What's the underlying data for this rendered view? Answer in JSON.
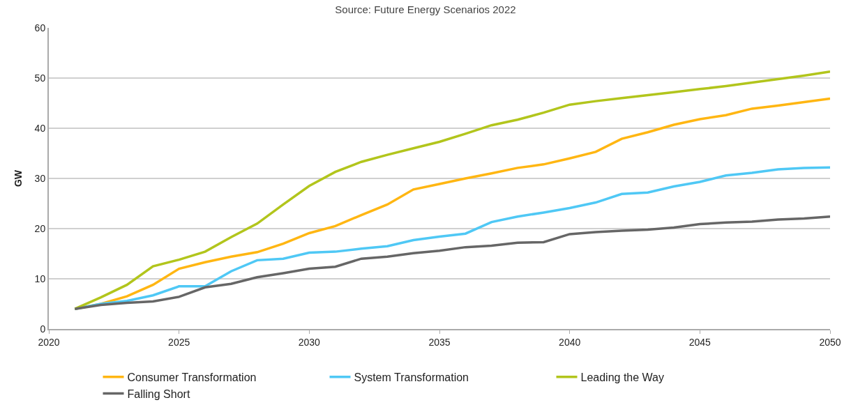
{
  "chart_data": {
    "type": "line",
    "title": "Source: Future Energy Scenarios 2022",
    "ylabel": "GW",
    "x": [
      2021,
      2022,
      2023,
      2024,
      2025,
      2026,
      2027,
      2028,
      2029,
      2030,
      2031,
      2032,
      2033,
      2034,
      2035,
      2036,
      2037,
      2038,
      2039,
      2040,
      2041,
      2042,
      2043,
      2044,
      2045,
      2046,
      2047,
      2048,
      2049,
      2050
    ],
    "series": [
      {
        "name": "Consumer Transformation",
        "color": "#ffb612",
        "values": [
          4,
          5,
          6.5,
          8.8,
          12,
          13.3,
          14.4,
          15.3,
          17,
          19.1,
          20.5,
          22.7,
          24.8,
          27.8,
          28.9,
          30,
          31,
          32.1,
          32.8,
          34,
          35.3,
          37.9,
          39.2,
          40.7,
          41.8,
          42.6,
          43.9,
          44.5,
          45.2,
          45.9
        ]
      },
      {
        "name": "System Transformation",
        "color": "#4fc8f5",
        "values": [
          4,
          5,
          5.6,
          6.7,
          8.5,
          8.5,
          11.5,
          13.7,
          14,
          15.2,
          15.4,
          16,
          16.5,
          17.7,
          18.4,
          19,
          21.3,
          22.4,
          23.2,
          24.1,
          25.2,
          26.9,
          27.2,
          28.4,
          29.3,
          30.6,
          31.1,
          31.8,
          32.1,
          32.2
        ]
      },
      {
        "name": "Leading the Way",
        "color": "#b2c51c",
        "values": [
          4,
          6.3,
          8.8,
          12.5,
          13.8,
          15.4,
          18.3,
          21,
          24.8,
          28.5,
          31.3,
          33.3,
          34.7,
          36,
          37.3,
          38.9,
          40.6,
          41.7,
          43.1,
          44.7,
          45.4,
          46,
          46.6,
          47.2,
          47.8,
          48.4,
          49.1,
          49.8,
          50.5,
          51.3
        ]
      },
      {
        "name": "Falling Short",
        "color": "#666666",
        "values": [
          4,
          4.8,
          5.2,
          5.5,
          6.4,
          8.3,
          9,
          10.3,
          11.1,
          12,
          12.4,
          14,
          14.4,
          15.1,
          15.6,
          16.3,
          16.6,
          17.2,
          17.3,
          18.9,
          19.3,
          19.6,
          19.8,
          20.2,
          20.9,
          21.2,
          21.4,
          21.8,
          22,
          22.4
        ]
      }
    ],
    "xlim": [
      2020,
      2050
    ],
    "xticks": [
      2020,
      2025,
      2030,
      2035,
      2040,
      2045,
      2050
    ],
    "ylim": [
      0,
      60
    ],
    "yticks": [
      0,
      10,
      20,
      30,
      40,
      50,
      60
    ],
    "grid": "y",
    "legend": "bottom",
    "marker": "none",
    "line_style": "solid"
  }
}
